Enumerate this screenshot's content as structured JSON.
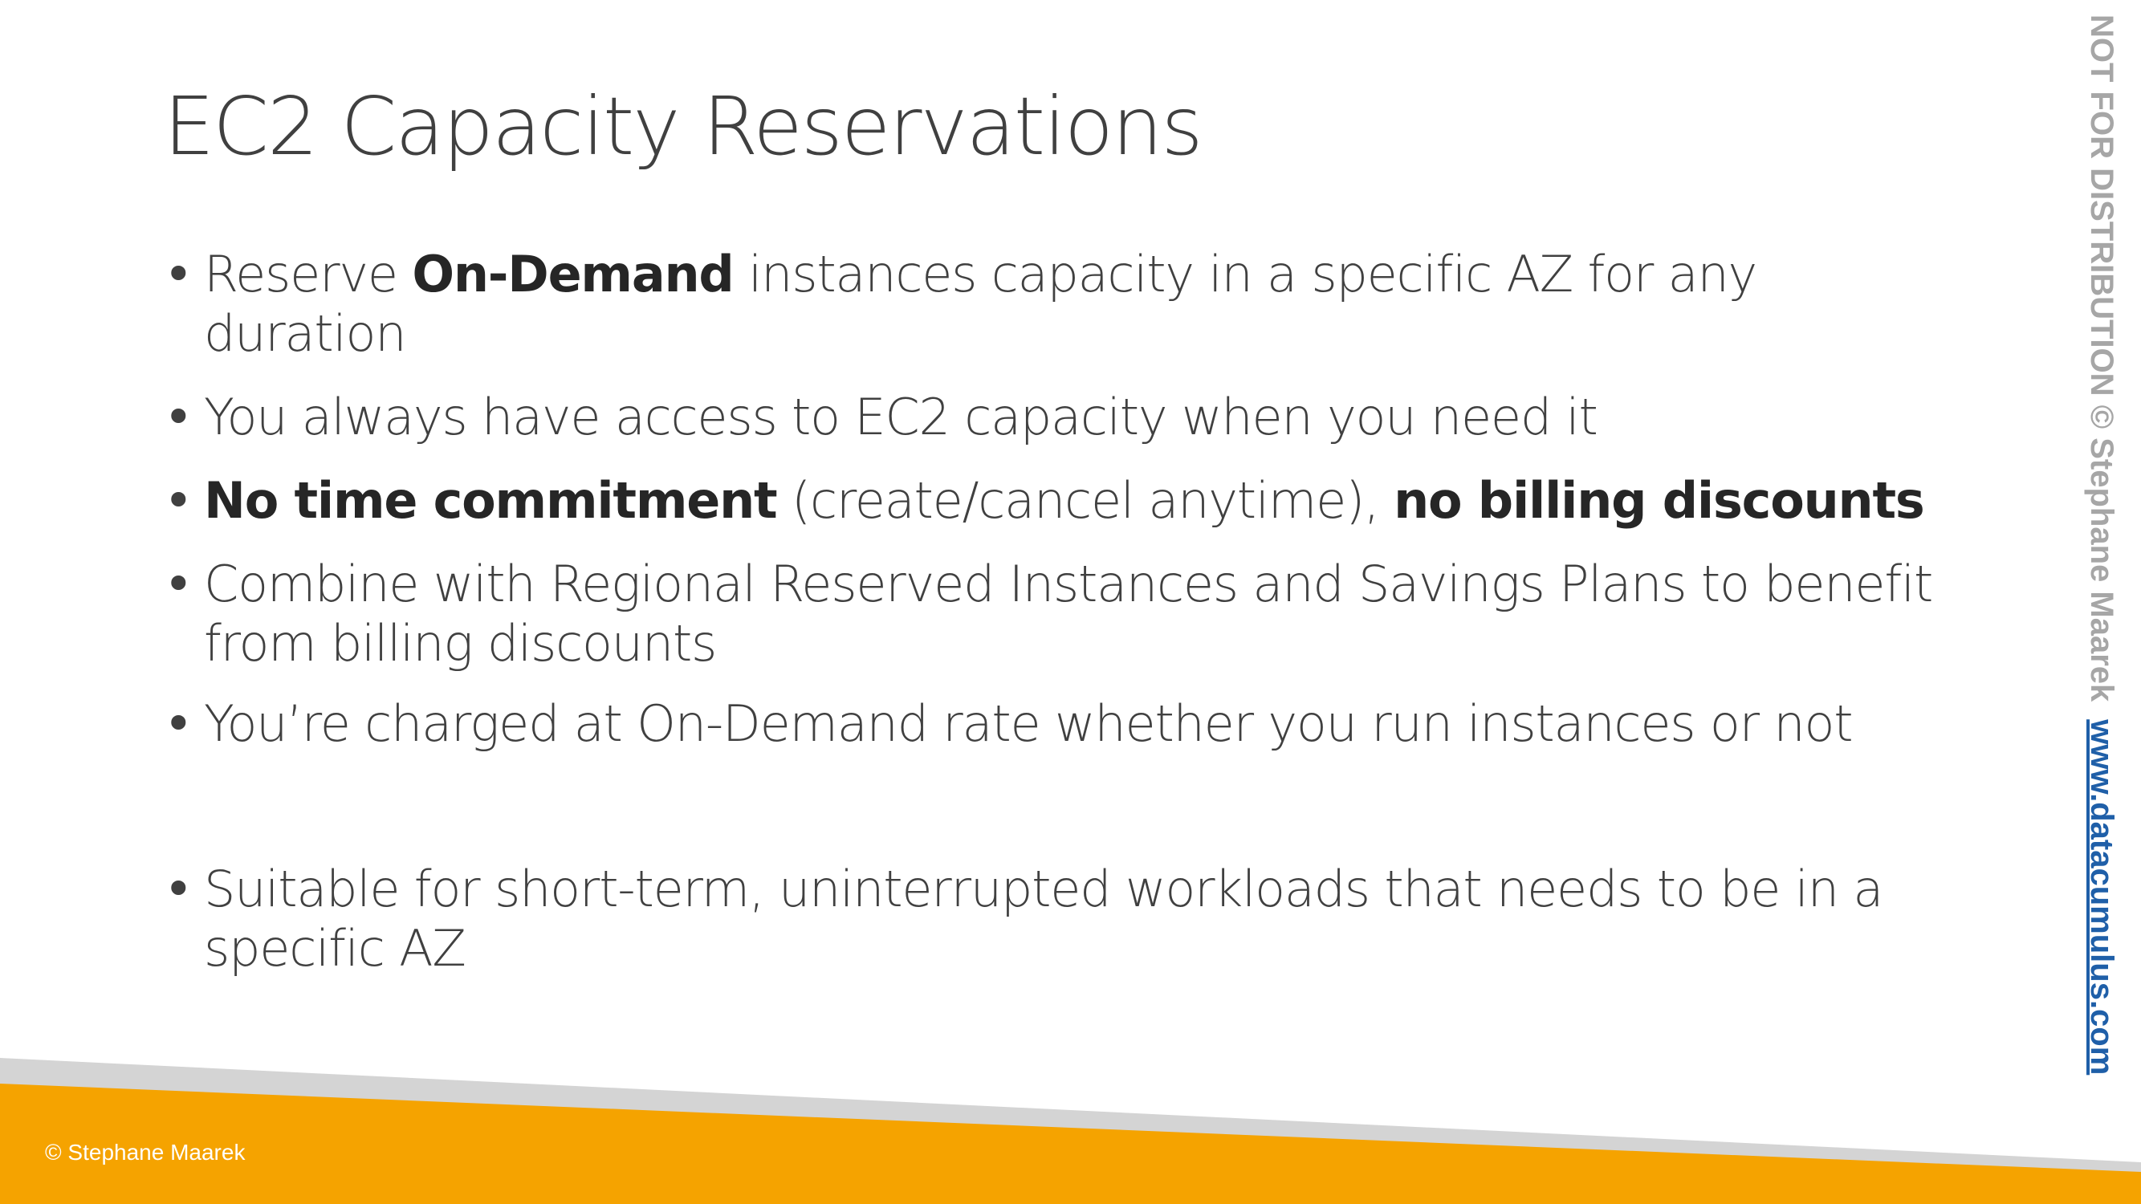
{
  "slide": {
    "title": "EC2 Capacity Reservations",
    "bullets": [
      {
        "parts": [
          {
            "text": "Reserve "
          },
          {
            "text": "On-Demand",
            "bold": true
          },
          {
            "text": " instances capacity in a specific AZ for any"
          }
        ],
        "continuation": "duration"
      },
      {
        "parts": [
          {
            "text": "You always have access to EC2 capacity when you need it"
          }
        ]
      },
      {
        "parts": [
          {
            "text": "No time commitment",
            "bold": true
          },
          {
            "text": " (create/cancel anytime), "
          },
          {
            "text": "no billing discounts",
            "bold": true
          }
        ]
      },
      {
        "parts": [
          {
            "text": "Combine with Regional Reserved Instances and Savings Plans to benefit"
          }
        ],
        "continuation": "from billing discounts"
      },
      {
        "parts": [
          {
            "text": "You’re charged at On-Demand rate whether you run instances or not"
          }
        ]
      },
      {
        "parts": [
          {
            "text": "Suitable for short-term, uninterrupted workloads that needs to be in a"
          }
        ],
        "continuation": "specific AZ"
      }
    ]
  },
  "footer": {
    "copyright": "© Stephane Maarek"
  },
  "watermark": {
    "text": "NOT FOR DISTRIBUTION © Stephane Maarek",
    "link": "www.datacumulus.com"
  },
  "colors": {
    "title_text": "#404040",
    "body_text": "#404040",
    "bold_text": "#262626",
    "footer_orange": "#f5a300",
    "footer_gray": "#d4d4d4",
    "watermark_gray": "#a6a6a6",
    "watermark_link": "#1f5fa8"
  }
}
